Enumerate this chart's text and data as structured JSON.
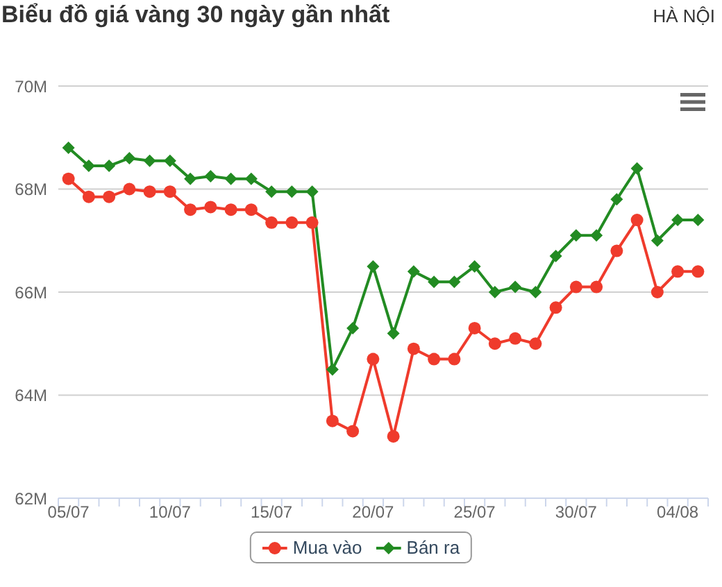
{
  "chart_data": {
    "type": "line",
    "title": "Biểu đồ giá vàng 30 ngày gần nhất",
    "subtitle": "HÀ NỘI",
    "categories": [
      "05/07",
      null,
      null,
      null,
      null,
      "10/07",
      null,
      null,
      null,
      null,
      "15/07",
      null,
      null,
      null,
      null,
      "20/07",
      null,
      null,
      null,
      null,
      "25/07",
      null,
      null,
      null,
      null,
      "30/07",
      null,
      null,
      null,
      null,
      "04/08",
      null
    ],
    "series": [
      {
        "name": "Mua vào",
        "color": "#ef3b2c",
        "marker": "circle",
        "values": [
          68.2,
          67.85,
          67.85,
          68.0,
          67.95,
          67.95,
          67.6,
          67.65,
          67.6,
          67.6,
          67.35,
          67.35,
          67.35,
          63.5,
          63.3,
          64.7,
          63.2,
          64.9,
          64.7,
          64.7,
          65.3,
          65.0,
          65.1,
          65.0,
          65.7,
          66.1,
          66.1,
          66.8,
          67.4,
          66.0,
          66.4,
          66.4
        ]
      },
      {
        "name": "Bán ra",
        "color": "#228b22",
        "marker": "diamond",
        "values": [
          68.8,
          68.45,
          68.45,
          68.6,
          68.55,
          68.55,
          68.2,
          68.25,
          68.2,
          68.2,
          67.95,
          67.95,
          67.95,
          64.5,
          65.3,
          66.5,
          65.2,
          66.4,
          66.2,
          66.2,
          66.5,
          66.0,
          66.1,
          66.0,
          66.7,
          67.1,
          67.1,
          67.8,
          68.4,
          67.0,
          67.4,
          67.4
        ]
      }
    ],
    "ylim": [
      62,
      70
    ],
    "yticks": [
      {
        "value": 62,
        "label": "62M"
      },
      {
        "value": 64,
        "label": "64M"
      },
      {
        "value": 66,
        "label": "66M"
      },
      {
        "value": 68,
        "label": "68M"
      },
      {
        "value": 70,
        "label": "70M"
      }
    ],
    "grid": "y",
    "legend": "bottom"
  }
}
